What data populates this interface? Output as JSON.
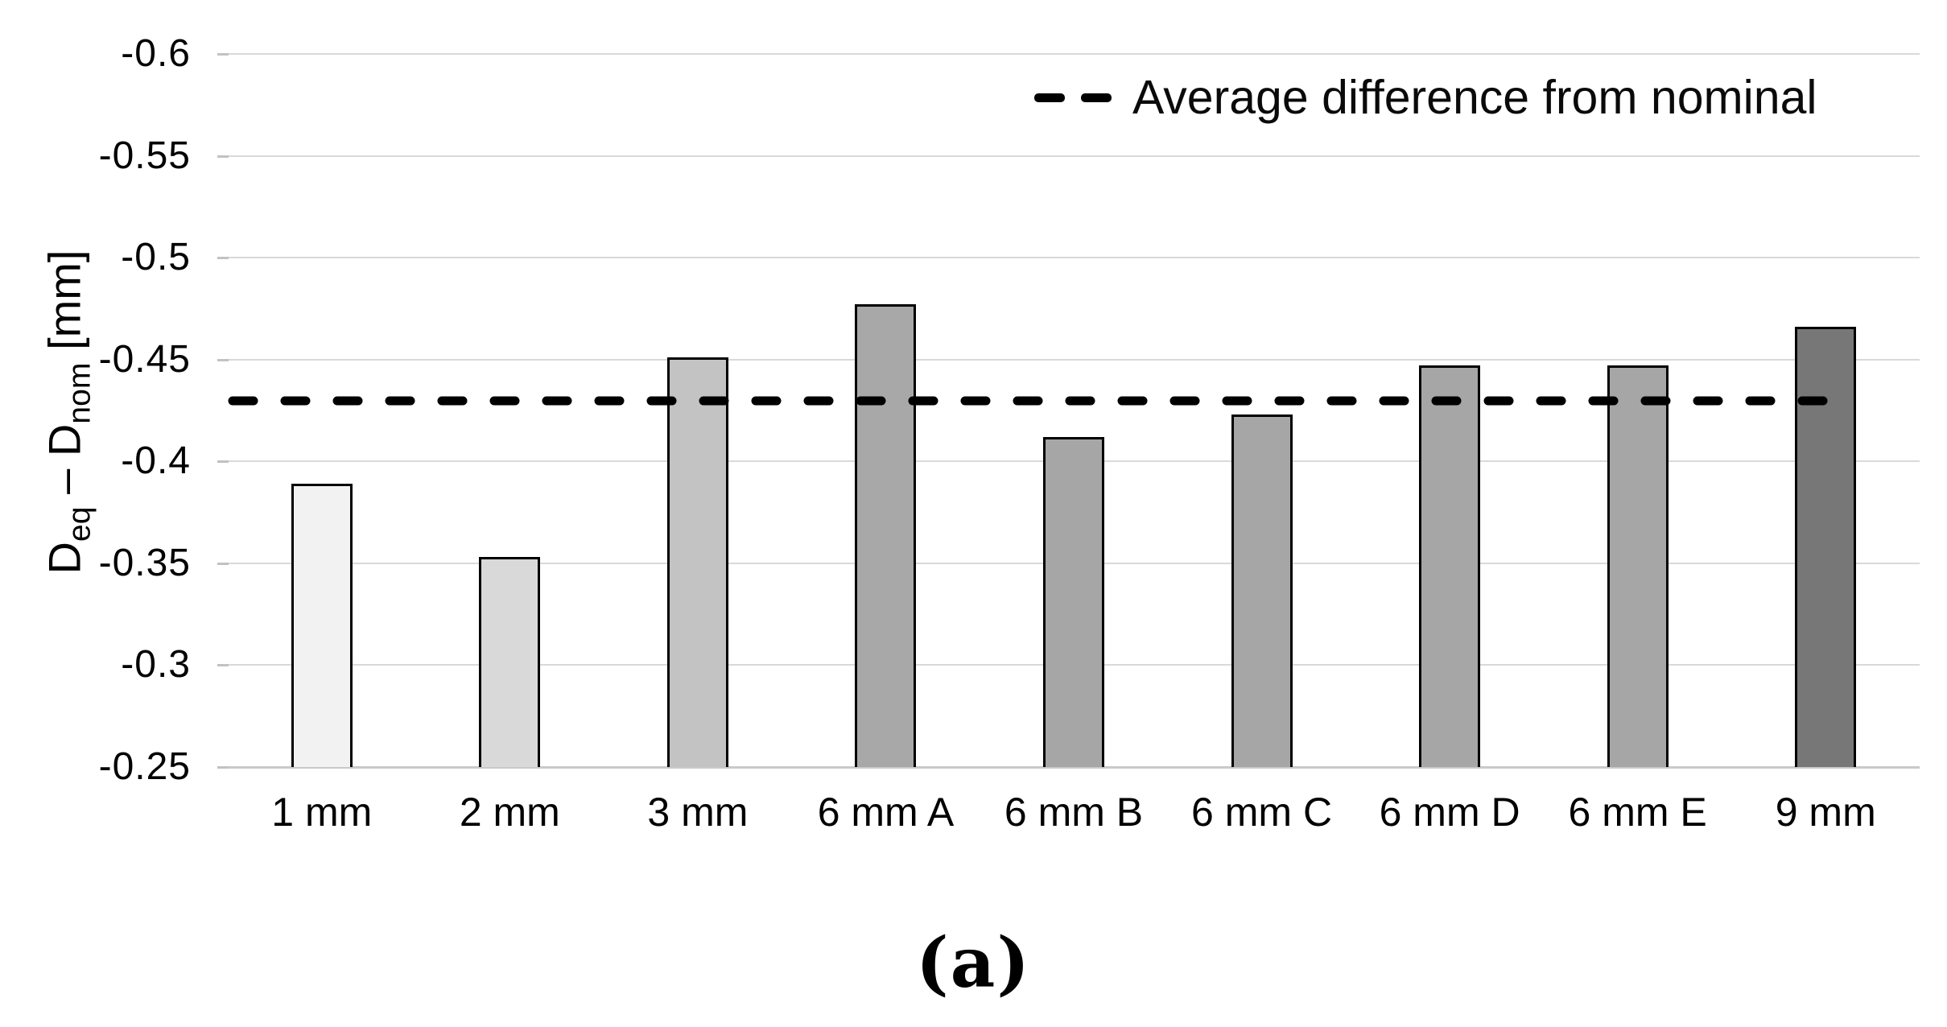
{
  "figure": {
    "caption": "(a)"
  },
  "chart_data": {
    "type": "bar",
    "title": "",
    "categories": [
      "1 mm",
      "2 mm",
      "3 mm",
      "6 mm A",
      "6 mm B",
      "6 mm C",
      "6 mm D",
      "6 mm E",
      "9 mm"
    ],
    "values": [
      -0.389,
      -0.353,
      -0.451,
      -0.477,
      -0.412,
      -0.423,
      -0.447,
      -0.447,
      -0.466
    ],
    "bar_colors": [
      "#f2f2f2",
      "#d9d9d9",
      "#c3c3c3",
      "#a8a8a8",
      "#a6a6a6",
      "#a6a6a6",
      "#a6a6a6",
      "#a6a6a6",
      "#777777"
    ],
    "xlabel": "",
    "ylabel": "Deq – Dnom [mm]",
    "ylabel_parts": [
      {
        "text": "D",
        "subscript": false
      },
      {
        "text": "eq",
        "subscript": true
      },
      {
        "text": " – ",
        "subscript": false
      },
      {
        "text": "D",
        "subscript": false
      },
      {
        "text": "nom",
        "subscript": true
      },
      {
        "text": " [mm]",
        "subscript": false
      }
    ],
    "ytick_labels": [
      "-0.6",
      "-0.55",
      "-0.5",
      "-0.45",
      "-0.4",
      "-0.35",
      "-0.3",
      "-0.25"
    ],
    "ylim": [
      -0.6,
      -0.25
    ],
    "y_axis_reversed": true,
    "grid": true,
    "legend_position": "top-right",
    "average_line": {
      "value": -0.43,
      "label": "Average difference from nominal",
      "style": "dashed",
      "color": "#000000"
    },
    "colors": {
      "grid": "#d9d9d9",
      "axis_line": "#c9c9c9",
      "bar_border": "#000000",
      "dash_line": "#000000",
      "text": "#000000"
    }
  }
}
